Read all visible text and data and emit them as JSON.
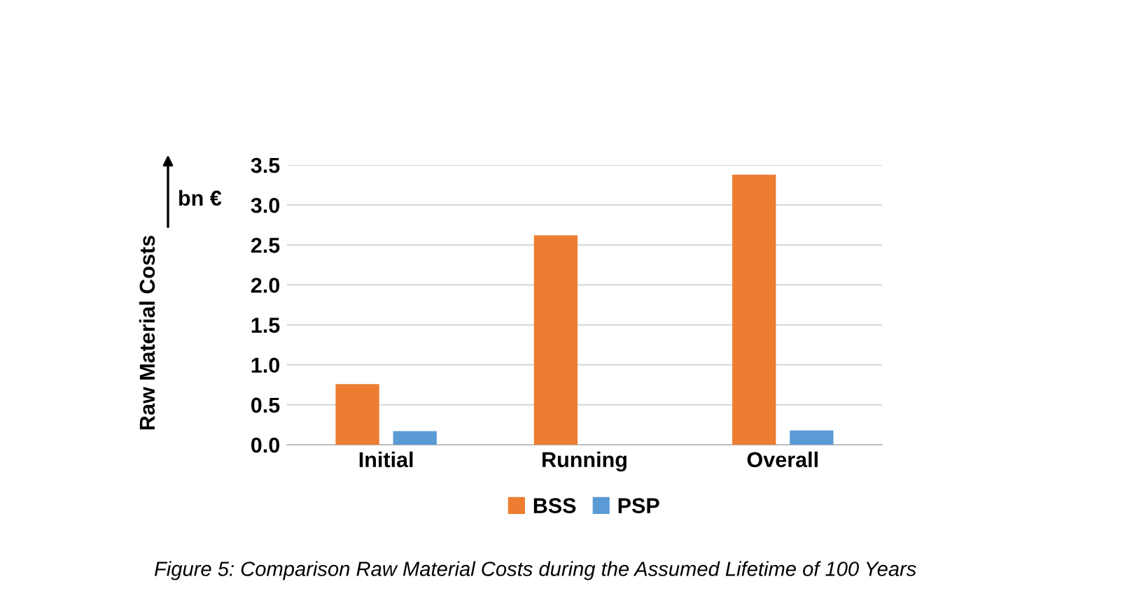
{
  "chart_data": {
    "type": "bar",
    "categories": [
      "Initial",
      "Running",
      "Overall"
    ],
    "series": [
      {
        "name": "BSS",
        "color": "#ed7d31",
        "values": [
          0.76,
          2.62,
          3.38
        ]
      },
      {
        "name": "PSP",
        "color": "#5b9bd5",
        "values": [
          0.17,
          null,
          0.18
        ]
      }
    ],
    "ylabel": "Raw Material Costs",
    "ylim": [
      0,
      3.5
    ],
    "yticks": [
      {
        "value": 0,
        "label": "0.0"
      },
      {
        "value": 0.5,
        "label": "0.5"
      },
      {
        "value": 1,
        "label": "1.0"
      },
      {
        "value": 1.5,
        "label": "1.5"
      },
      {
        "value": 2,
        "label": "2.0"
      },
      {
        "value": 2.5,
        "label": "2.5"
      },
      {
        "value": 3,
        "label": "3.0"
      },
      {
        "value": 3.5,
        "label": "3.5"
      }
    ],
    "grid": "y",
    "legend": "bottom",
    "annotations": [
      "bn €",
      "Figure 5: Comparison Raw Material Costs during the Assumed Lifetime of 100 Years"
    ]
  }
}
